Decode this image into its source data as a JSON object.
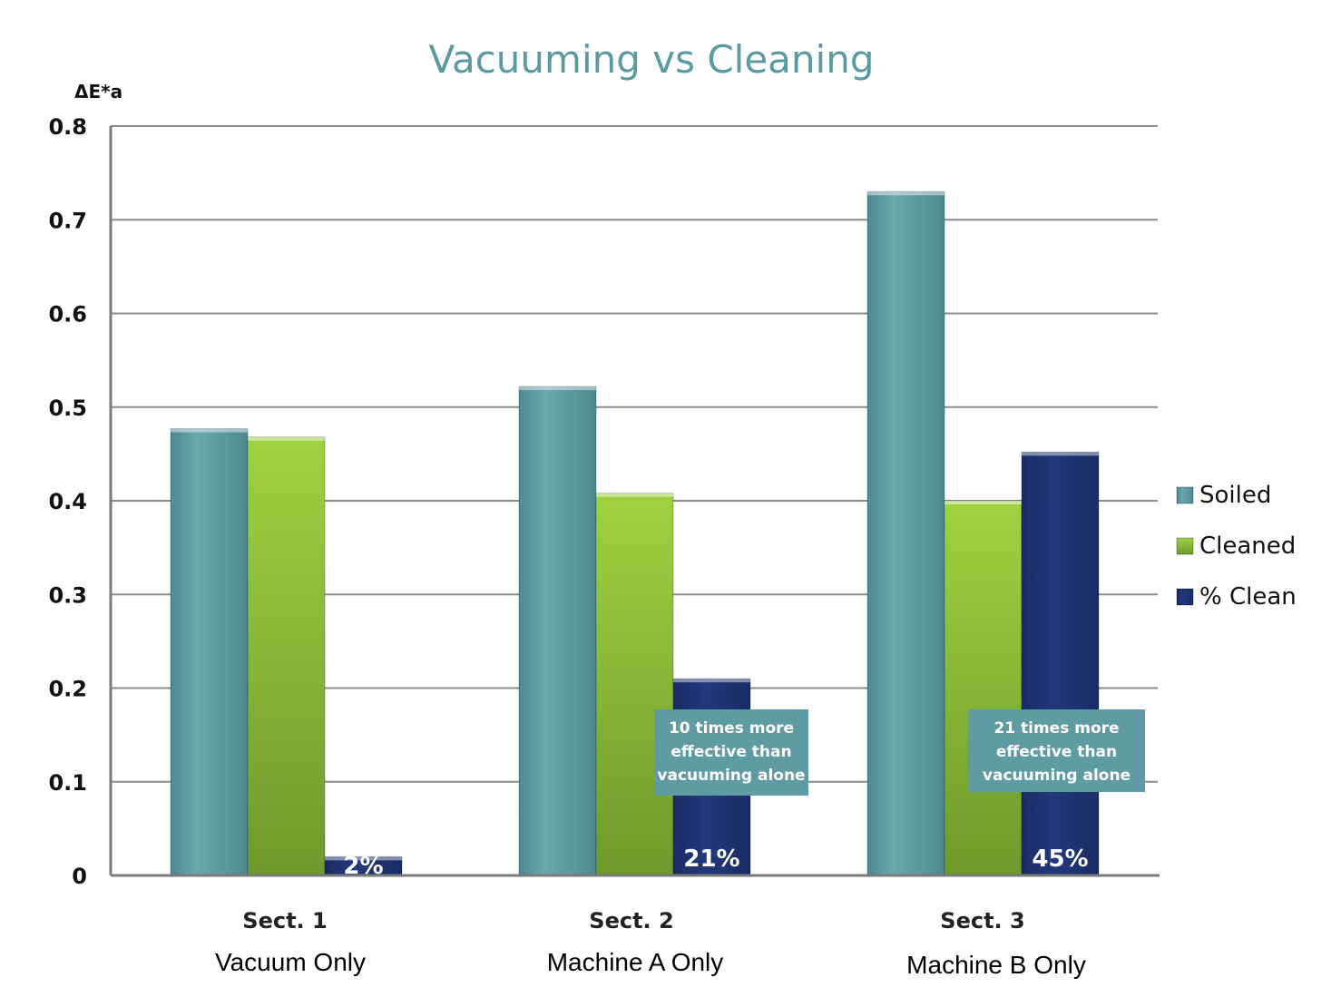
{
  "chart_data": {
    "type": "bar",
    "title": "Vacuuming vs Cleaning",
    "ylabel": "ΔE*a",
    "xlabel": "",
    "ylim": [
      0,
      0.8
    ],
    "yticks": [
      "0",
      "0.1",
      "0.2",
      "0.3",
      "0.4",
      "0.5",
      "0.6",
      "0.7",
      "0.8"
    ],
    "categories": [
      "Sect. 1",
      "Sect. 2",
      "Sect. 3"
    ],
    "category_subtitles": [
      "Vacuum Only",
      "Machine A Only",
      "Machine B Only"
    ],
    "series": [
      {
        "name": "Soiled",
        "color": "#5f9ba3",
        "values": [
          0.477,
          0.522,
          0.73
        ]
      },
      {
        "name": "Cleaned",
        "color": "#8fc43a",
        "values": [
          0.468,
          0.408,
          0.4
        ]
      },
      {
        "name": "% Clean",
        "color": "#1e3270",
        "values": [
          0.02,
          0.21,
          0.452
        ]
      }
    ],
    "data_labels": {
      "series": "% Clean",
      "labels": [
        "2%",
        "21%",
        "45%"
      ]
    },
    "annotations": [
      {
        "category": "Sect. 2",
        "lines": [
          "10 times more",
          "effective than",
          "vacuuming alone"
        ]
      },
      {
        "category": "Sect. 3",
        "lines": [
          "21 times more",
          "effective than",
          "vacuuming alone"
        ]
      }
    ],
    "grid": true,
    "legend_position": "right"
  }
}
